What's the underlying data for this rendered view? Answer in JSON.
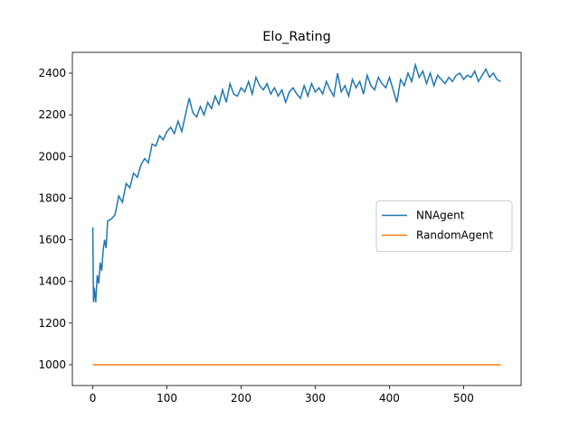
{
  "chart_data": {
    "type": "line",
    "title": "Elo_Rating",
    "xlim": [
      -27.5,
      577.5
    ],
    "xticks": [
      0,
      100,
      200,
      300,
      400,
      500
    ],
    "ylim": [
      900,
      2500
    ],
    "yticks": [
      1000,
      1200,
      1400,
      1600,
      1800,
      2000,
      2200,
      2400
    ],
    "legend": "right",
    "series": [
      {
        "name": "NNAgent",
        "color": "#1f77b4",
        "x": [
          0,
          1,
          2,
          4,
          6,
          8,
          10,
          12,
          14,
          16,
          18,
          20,
          25,
          30,
          35,
          40,
          45,
          50,
          55,
          60,
          65,
          70,
          75,
          80,
          85,
          90,
          95,
          100,
          105,
          110,
          115,
          120,
          125,
          130,
          135,
          140,
          145,
          150,
          155,
          160,
          165,
          170,
          175,
          180,
          185,
          190,
          195,
          200,
          205,
          210,
          215,
          220,
          225,
          230,
          235,
          240,
          245,
          250,
          255,
          260,
          265,
          270,
          275,
          280,
          285,
          290,
          295,
          300,
          305,
          310,
          315,
          320,
          325,
          330,
          335,
          340,
          345,
          350,
          355,
          360,
          365,
          370,
          375,
          380,
          385,
          390,
          395,
          400,
          405,
          410,
          415,
          420,
          425,
          430,
          435,
          440,
          445,
          450,
          455,
          460,
          465,
          470,
          475,
          480,
          485,
          490,
          495,
          500,
          505,
          510,
          515,
          520,
          525,
          530,
          535,
          540,
          545,
          550
        ],
        "values": [
          1660,
          1300,
          1370,
          1300,
          1430,
          1390,
          1490,
          1450,
          1550,
          1600,
          1560,
          1690,
          1700,
          1720,
          1810,
          1780,
          1870,
          1850,
          1920,
          1900,
          1960,
          1990,
          1970,
          2060,
          2050,
          2100,
          2080,
          2120,
          2140,
          2110,
          2170,
          2120,
          2200,
          2280,
          2210,
          2190,
          2240,
          2200,
          2260,
          2230,
          2290,
          2250,
          2320,
          2260,
          2350,
          2300,
          2290,
          2330,
          2310,
          2360,
          2300,
          2380,
          2340,
          2320,
          2350,
          2300,
          2330,
          2290,
          2320,
          2260,
          2310,
          2330,
          2300,
          2280,
          2340,
          2290,
          2350,
          2310,
          2330,
          2300,
          2360,
          2320,
          2290,
          2400,
          2310,
          2340,
          2290,
          2370,
          2330,
          2360,
          2300,
          2390,
          2340,
          2320,
          2380,
          2350,
          2330,
          2380,
          2320,
          2260,
          2370,
          2340,
          2400,
          2360,
          2440,
          2380,
          2410,
          2350,
          2400,
          2340,
          2390,
          2370,
          2350,
          2380,
          2360,
          2390,
          2400,
          2370,
          2390,
          2380,
          2410,
          2360,
          2390,
          2420,
          2380,
          2400,
          2370,
          2360
        ]
      },
      {
        "name": "RandomAgent",
        "color": "#ff7f0e",
        "x": [
          0,
          550
        ],
        "values": [
          1000,
          1000
        ]
      }
    ]
  }
}
